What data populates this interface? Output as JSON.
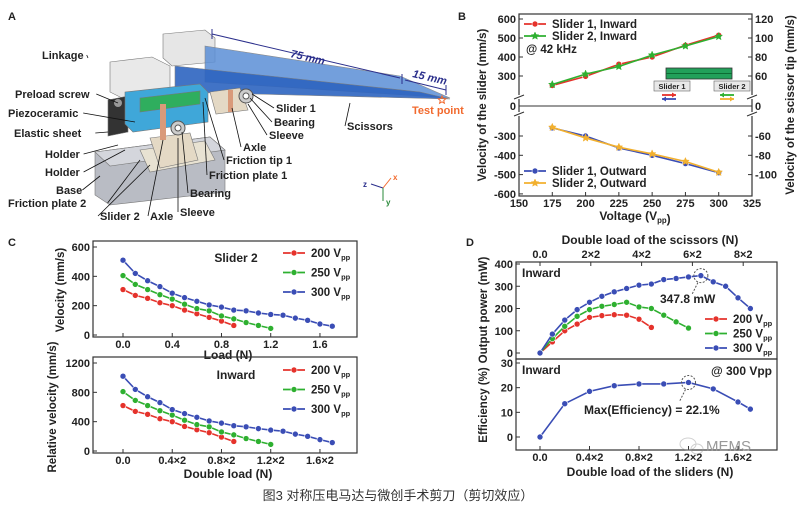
{
  "caption": "图3 对称压电马达与微创手术剪刀（剪切效应）",
  "watermark": "MEMS",
  "colors": {
    "red": "#e5322b",
    "green": "#2eb030",
    "blue": "#3a4db5",
    "orange": "#f2b02e",
    "navy": "#2b2f8c",
    "test_point": "#f26a2e"
  },
  "panel_a": {
    "panel_label": "A",
    "labels": [
      "Linkage",
      "Preload screw",
      "Piezoceramic",
      "Elastic sheet",
      "Holder",
      "Holder",
      "Base",
      "Friction plate 2",
      "Slider 2",
      "Axle",
      "Sleeve",
      "Bearing",
      "Friction plate 1",
      "Friction tip 1",
      "Axle",
      "Sleeve",
      "Bearing",
      "Slider 1",
      "Scissors",
      "Test point"
    ],
    "dimension_75": "75 mm",
    "dimension_15": "15 mm",
    "axes": {
      "x": "x",
      "y": "y",
      "z": "z"
    }
  },
  "chart_data": [
    {
      "panel_label": "B",
      "type": "line",
      "xlabel": "Voltage (Vpp)",
      "ylabel": "Velocity of the slider (mm/s)",
      "y2label": "Velocity of the scissor tip (mm/s)",
      "xlim": [
        150,
        325
      ],
      "ylim": [
        -600,
        600
      ],
      "y2lim": [
        -120,
        120
      ],
      "axis_break": true,
      "x_ticks": [
        "150",
        "175",
        "200",
        "225",
        "250",
        "275",
        "300",
        "325"
      ],
      "y_ticks": [
        "-600",
        "-500",
        "-400",
        "-300",
        "0",
        "300",
        "400",
        "500",
        "600"
      ],
      "y2_ticks": [
        "-100",
        "-80",
        "-60",
        "0",
        "60",
        "80",
        "100",
        "120"
      ],
      "annotation": "@ 42 kHz",
      "inset_labels": [
        "Slider 1",
        "Slider 2"
      ],
      "x": [
        175,
        200,
        225,
        250,
        275,
        300
      ],
      "series": [
        {
          "name": "Slider 1, Inward",
          "color": "#e5322b",
          "marker": "circle",
          "values": [
            250,
            298,
            362,
            400,
            462,
            515
          ]
        },
        {
          "name": "Slider 2, Inward",
          "color": "#2eb030",
          "marker": "star",
          "values": [
            255,
            310,
            350,
            410,
            458,
            508
          ]
        },
        {
          "name": "Slider 1, Outward",
          "color": "#3a4db5",
          "marker": "circle",
          "values": [
            -258,
            -300,
            -362,
            -400,
            -443,
            -490
          ]
        },
        {
          "name": "Slider 2, Outward",
          "color": "#f2b02e",
          "marker": "star",
          "values": [
            -255,
            -310,
            -358,
            -393,
            -432,
            -488
          ]
        }
      ]
    },
    {
      "panel_label": "C",
      "type": "line",
      "xlabel": "Load (N)",
      "ylabel": "Velocity (mm/s)",
      "annotation": "Slider 2",
      "ylim": [
        0,
        600
      ],
      "x_ticks": [
        "0.0",
        "0.4",
        "0.8",
        "1.2",
        "1.6"
      ],
      "y_ticks": [
        "0",
        "200",
        "400",
        "600"
      ],
      "x_step": 0.1,
      "series": [
        {
          "name": "200 Vpp",
          "color": "#e5322b",
          "values": [
            310,
            270,
            250,
            220,
            200,
            170,
            145,
            120,
            95,
            65
          ]
        },
        {
          "name": "250 Vpp",
          "color": "#2eb030",
          "values": [
            405,
            345,
            310,
            275,
            245,
            210,
            180,
            165,
            130,
            110,
            85,
            65,
            45
          ]
        },
        {
          "name": "300 Vpp",
          "color": "#3a4db5",
          "values": [
            510,
            420,
            370,
            330,
            285,
            255,
            230,
            205,
            190,
            170,
            165,
            150,
            140,
            135,
            115,
            100,
            75,
            60
          ]
        }
      ]
    },
    {
      "type": "line",
      "xlabel": "Double load (N)",
      "ylabel": "Relative velocity (mm/s)",
      "annotation": "Inward",
      "ylim": [
        0,
        1200
      ],
      "x_ticks": [
        "0.0",
        "0.4×2",
        "0.8×2",
        "1.2×2",
        "1.6×2"
      ],
      "y_ticks": [
        "0",
        "400",
        "800",
        "1200"
      ],
      "x_step": 0.1,
      "series": [
        {
          "name": "200 Vpp",
          "color": "#e5322b",
          "values": [
            620,
            540,
            500,
            440,
            400,
            335,
            290,
            250,
            190,
            130
          ]
        },
        {
          "name": "250 Vpp",
          "color": "#2eb030",
          "values": [
            810,
            690,
            620,
            550,
            490,
            420,
            360,
            330,
            260,
            220,
            170,
            130,
            90
          ]
        },
        {
          "name": "300 Vpp",
          "color": "#3a4db5",
          "values": [
            1020,
            840,
            740,
            660,
            565,
            510,
            460,
            410,
            380,
            345,
            330,
            305,
            285,
            270,
            230,
            200,
            155,
            115
          ]
        }
      ]
    },
    {
      "panel_label": "D",
      "type": "line",
      "x2label": "Double load of the scissors (N)",
      "x2_ticks": [
        "0.0",
        "2×2",
        "4×2",
        "6×2",
        "8×2"
      ],
      "ylabel": "Output power (mW)",
      "annotation": "Inward",
      "peak_label": "347.8 mW",
      "ylim": [
        0,
        400
      ],
      "y_ticks": [
        "0",
        "100",
        "200",
        "300",
        "400"
      ],
      "x_step": 0.1,
      "series": [
        {
          "name": "200 Vpp",
          "color": "#e5322b",
          "values": [
            0,
            50,
            100,
            130,
            160,
            168,
            172,
            170,
            152,
            115
          ]
        },
        {
          "name": "250 Vpp",
          "color": "#2eb030",
          "values": [
            0,
            65,
            120,
            165,
            195,
            210,
            218,
            228,
            207,
            200,
            170,
            140,
            112
          ]
        },
        {
          "name": "300 Vpp",
          "color": "#3a4db5",
          "values": [
            0,
            85,
            148,
            195,
            228,
            255,
            275,
            290,
            305,
            310,
            330,
            335,
            342,
            347.8,
            320,
            300,
            248,
            200
          ]
        }
      ]
    },
    {
      "type": "line",
      "xlabel": "Double load of the sliders (N)",
      "ylabel": "Efficiency (%)",
      "annotation": "Inward",
      "condition": "@ 300 Vpp",
      "peak_label": "Max(Efficiency) = 22.1%",
      "ylim": [
        -5,
        30
      ],
      "x_ticks": [
        "0.0",
        "0.4×2",
        "0.8×2",
        "1.2×2",
        "1.6×2"
      ],
      "y_ticks": [
        "0",
        "10",
        "20",
        "30"
      ],
      "x": [
        0,
        0.2,
        0.4,
        0.6,
        0.8,
        1.0,
        1.2,
        1.4,
        1.6,
        1.7
      ],
      "series": [
        {
          "name": "300 Vpp",
          "color": "#3a4db5",
          "values": [
            0,
            13.5,
            18.5,
            20.8,
            21.5,
            21.5,
            22.1,
            19.5,
            14.2,
            11.3
          ]
        }
      ]
    }
  ]
}
